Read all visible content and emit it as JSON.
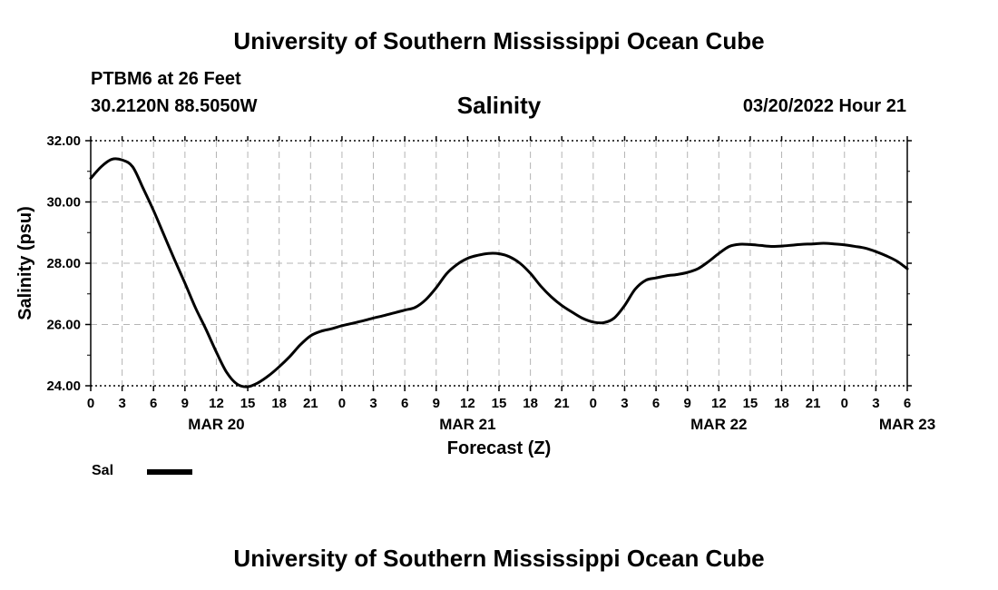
{
  "header": {
    "title": "University of Southern Mississippi Ocean Cube",
    "station": "PTBM6 at 26 Feet",
    "coords": "30.2120N  88.5050W",
    "datetime": "03/20/2022 Hour 21"
  },
  "footer": {
    "title": "University of Southern Mississippi Ocean Cube"
  },
  "legend": {
    "label": "Sal"
  },
  "chart_data": {
    "type": "line",
    "title": "Salinity",
    "xlabel": "Forecast (Z)",
    "ylabel": "Salinity (psu)",
    "xlim": [
      0,
      78
    ],
    "ylim": [
      24,
      32
    ],
    "y_ticks": [
      24,
      26,
      28,
      30,
      32
    ],
    "y_tick_labels": [
      "24.00",
      "26.00",
      "28.00",
      "30.00",
      "32.00"
    ],
    "x_tick_labels": [
      "0",
      "3",
      "6",
      "9",
      "12",
      "15",
      "18",
      "21",
      "0",
      "3",
      "6",
      "9",
      "12",
      "15",
      "18",
      "21",
      "0",
      "3",
      "6",
      "9",
      "12",
      "15",
      "18",
      "21",
      "0",
      "3",
      "6"
    ],
    "date_labels": [
      {
        "label": "MAR 20",
        "hour": 12
      },
      {
        "label": "MAR 21",
        "hour": 36
      },
      {
        "label": "MAR 22",
        "hour": 60
      },
      {
        "label": "MAR 23",
        "hour": 78
      }
    ],
    "grid": true,
    "series": [
      {
        "name": "Sal",
        "color": "#000000",
        "x": [
          0,
          1,
          2,
          3,
          4,
          5,
          6,
          7,
          8,
          9,
          10,
          11,
          12,
          13,
          14,
          15,
          16,
          17,
          18,
          19,
          20,
          21,
          22,
          23,
          24,
          25,
          26,
          27,
          28,
          29,
          30,
          31,
          32,
          33,
          34,
          35,
          36,
          37,
          38,
          39,
          40,
          41,
          42,
          43,
          44,
          45,
          46,
          47,
          48,
          49,
          50,
          51,
          52,
          53,
          54,
          55,
          56,
          57,
          58,
          59,
          60,
          61,
          62,
          63,
          64,
          65,
          66,
          67,
          68,
          69,
          70,
          71,
          72,
          73,
          74,
          75,
          76,
          77,
          78
        ],
        "values": [
          30.77,
          31.15,
          31.39,
          31.37,
          31.15,
          30.45,
          29.72,
          28.92,
          28.12,
          27.35,
          26.55,
          25.85,
          25.1,
          24.43,
          24.05,
          23.97,
          24.1,
          24.33,
          24.62,
          24.95,
          25.33,
          25.63,
          25.78,
          25.86,
          25.96,
          26.04,
          26.12,
          26.21,
          26.29,
          26.38,
          26.47,
          26.56,
          26.81,
          27.2,
          27.66,
          27.96,
          28.16,
          28.26,
          28.32,
          28.31,
          28.21,
          28.0,
          27.67,
          27.25,
          26.9,
          26.62,
          26.4,
          26.2,
          26.08,
          26.06,
          26.21,
          26.62,
          27.15,
          27.44,
          27.52,
          27.59,
          27.63,
          27.7,
          27.82,
          28.05,
          28.32,
          28.55,
          28.62,
          28.61,
          28.58,
          28.55,
          28.56,
          28.59,
          28.62,
          28.63,
          28.65,
          28.63,
          28.6,
          28.55,
          28.49,
          28.38,
          28.24,
          28.07,
          27.82
        ]
      }
    ]
  }
}
